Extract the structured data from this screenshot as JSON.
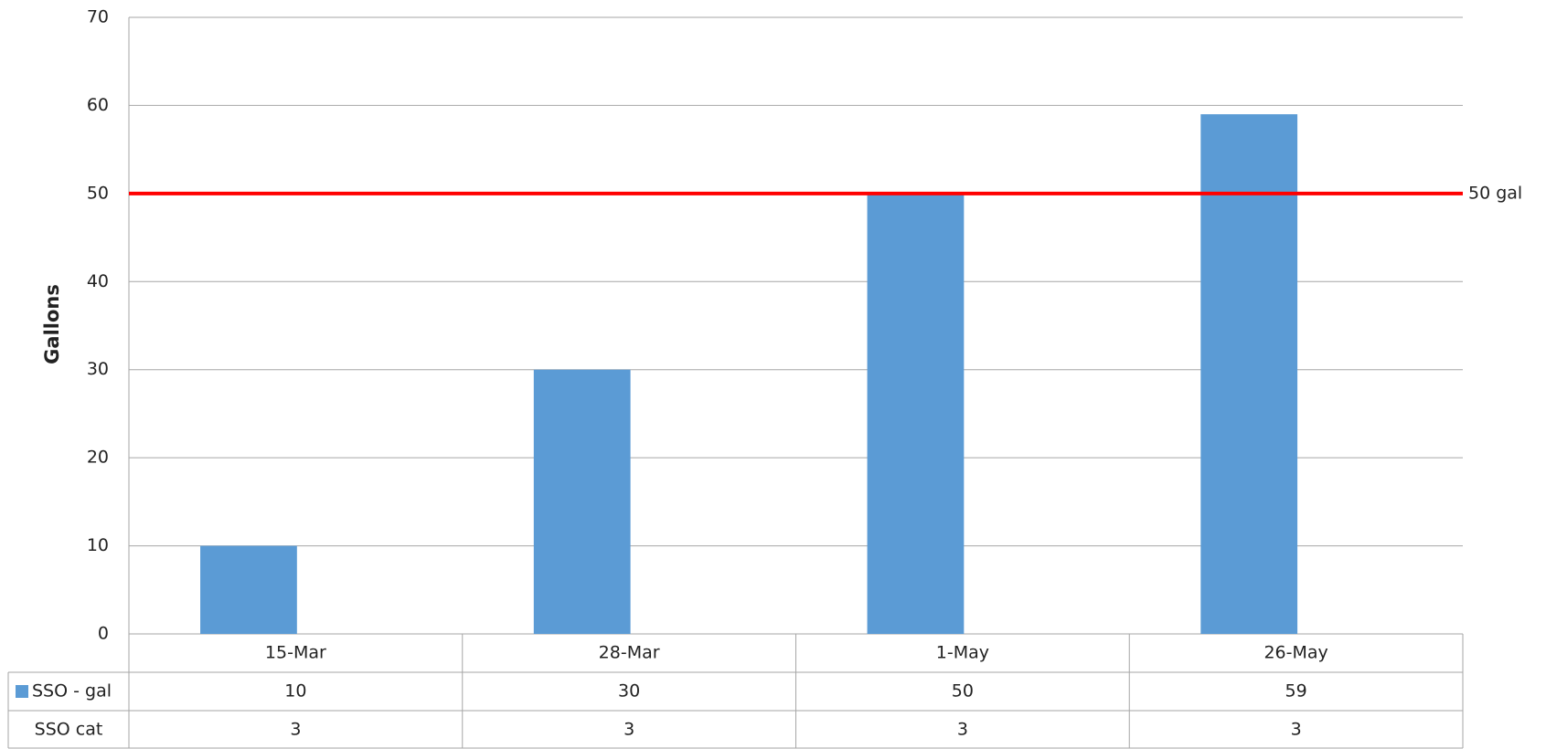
{
  "chart_data": {
    "type": "bar",
    "y_label": "Gallons",
    "categories": [
      "15-Mar",
      "28-Mar",
      "1-May",
      "26-May"
    ],
    "series": [
      {
        "name": "SSO - gal",
        "color": "#5b9bd5",
        "values": [
          10,
          30,
          50,
          59
        ]
      },
      {
        "name": "SSO cat",
        "values": [
          3,
          3,
          3,
          3
        ]
      }
    ],
    "ylim": [
      0,
      70
    ],
    "yticks": [
      0,
      10,
      20,
      30,
      40,
      50,
      60,
      70
    ],
    "grid": true,
    "threshold": {
      "value": 50,
      "label": "50 gal",
      "color": "#ff0000"
    },
    "data_table": true
  }
}
